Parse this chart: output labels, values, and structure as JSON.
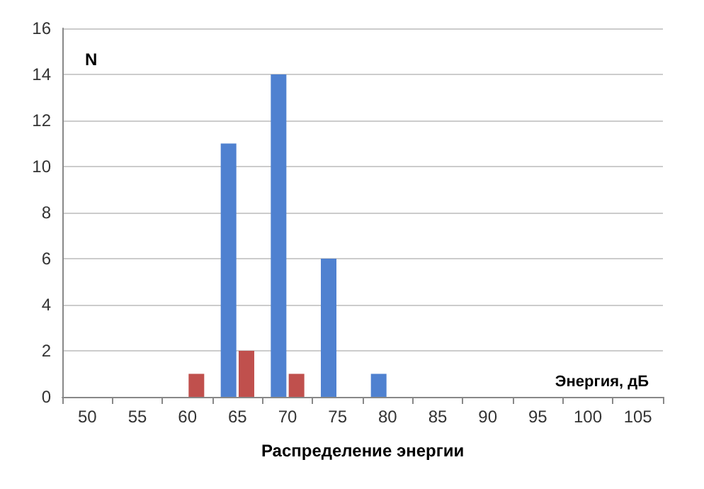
{
  "chart_data": {
    "type": "bar",
    "ylabel": "N",
    "xlabel": "Распределение энергии",
    "annotations": [
      "Энергия, дБ"
    ],
    "categories": [
      "50",
      "55",
      "60",
      "65",
      "70",
      "75",
      "80",
      "85",
      "90",
      "95",
      "100",
      "105"
    ],
    "series": [
      {
        "color": "#4f81d0",
        "values": [
          0,
          0,
          0,
          11,
          14,
          6,
          1,
          0,
          0,
          0,
          0,
          0
        ]
      },
      {
        "color": "#c0504d",
        "values": [
          0,
          0,
          1,
          2,
          1,
          0,
          0,
          0,
          0,
          0,
          0,
          0
        ]
      }
    ],
    "ylim": [
      0,
      16
    ],
    "yticks": [
      0,
      2,
      4,
      6,
      8,
      10,
      12,
      14,
      16
    ],
    "grid": "y"
  }
}
